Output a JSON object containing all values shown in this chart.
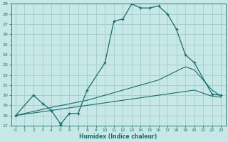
{
  "xlabel": "Humidex (Indice chaleur)",
  "xlim": [
    -0.5,
    23.5
  ],
  "ylim": [
    17,
    29
  ],
  "yticks": [
    17,
    18,
    19,
    20,
    21,
    22,
    23,
    24,
    25,
    26,
    27,
    28,
    29
  ],
  "xticks": [
    0,
    1,
    2,
    3,
    4,
    5,
    6,
    7,
    8,
    9,
    10,
    11,
    12,
    13,
    14,
    15,
    16,
    17,
    18,
    19,
    20,
    21,
    22,
    23
  ],
  "bg_color": "#c6e8e6",
  "line_color": "#1a6b6b",
  "grid_color": "#aacfcc",
  "line1_x": [
    0,
    2,
    3,
    4,
    5,
    5,
    6,
    7,
    8,
    10,
    11,
    12,
    13,
    14,
    15,
    16,
    17,
    18,
    19,
    20,
    22,
    23
  ],
  "line1_y": [
    18,
    20,
    19.2,
    18.5,
    17.2,
    17.1,
    18.2,
    18.2,
    20.5,
    23.2,
    27.3,
    27.5,
    29.0,
    28.6,
    28.6,
    28.8,
    28.0,
    26.5,
    24.0,
    23.2,
    20.1,
    20.0
  ],
  "line2_x": [
    0,
    4,
    8,
    12,
    16,
    20,
    21,
    22,
    23
  ],
  "line2_y": [
    18.0,
    18.5,
    19.0,
    19.5,
    20.0,
    20.5,
    20.2,
    19.9,
    19.8
  ],
  "line3_x": [
    0,
    4,
    8,
    12,
    16,
    19,
    20,
    21,
    22,
    23
  ],
  "line3_y": [
    18.0,
    18.8,
    19.5,
    20.5,
    21.5,
    22.8,
    22.5,
    21.5,
    20.5,
    19.9
  ]
}
